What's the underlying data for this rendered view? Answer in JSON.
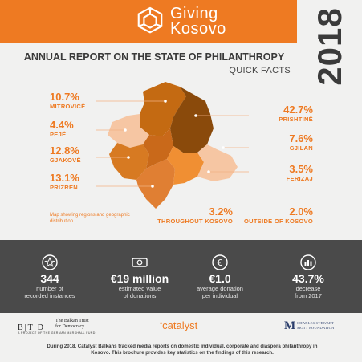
{
  "brand": {
    "logo_line1": "Giving",
    "logo_line2": "Kosovo",
    "year": "2018"
  },
  "report": {
    "title": "ANNUAL REPORT ON THE STATE OF PHILANTHROPY",
    "subtitle": "QUICK FACTS"
  },
  "regions": {
    "mitrovice": {
      "pct": "10.7%",
      "label": "MITROVICË"
    },
    "peje": {
      "pct": "4.4%",
      "label": "PEJË"
    },
    "gjakove": {
      "pct": "12.8%",
      "label": "GJAKOVË"
    },
    "prizren": {
      "pct": "13.1%",
      "label": "PRIZREN"
    },
    "prishtine": {
      "pct": "42.7%",
      "label": "PRISHTINË"
    },
    "gjilan": {
      "pct": "7.6%",
      "label": "GJILAN"
    },
    "ferizaj": {
      "pct": "3.5%",
      "label": "FERIZAJ"
    },
    "throughout": {
      "pct": "3.2%",
      "label": "THROUGHOUT KOSOVO"
    },
    "outside": {
      "pct": "2.0%",
      "label": "OUTSIDE OF KOSOVO"
    }
  },
  "map_note": "Map showing regions and geographic distribution",
  "facts": [
    {
      "icon": "star-icon",
      "value": "344",
      "line1": "number of",
      "line2": "recorded instances"
    },
    {
      "icon": "banknote-icon",
      "value": "€19 million",
      "line1": "estimated value",
      "line2": "of donations"
    },
    {
      "icon": "euro-icon",
      "value": "€1.0",
      "line1": "average donation",
      "line2": "per individual"
    },
    {
      "icon": "bar-chart-icon",
      "value": "43.7%",
      "line1": "decrease",
      "line2": "from 2017"
    }
  ],
  "partners": {
    "btd_mark": "B|T|D",
    "btd_name_line1": "The Balkan Trust",
    "btd_name_line2": "for Democracy",
    "btd_sub": "A PROJECT OF THE GERMAN MARSHALL FUND",
    "catalyst": "catalyst",
    "csm_mark": "M",
    "csm_line1": "CHARLES STEWART",
    "csm_line2": "MOTT FOUNDATION"
  },
  "footer_text": "During 2018, Catalyst Balkans tracked media reports on domestic individual, corporate and diaspora philanthropy in Kosovo. This brochure provides key statistics on the findings of this research.",
  "colors": {
    "accent": "#ee7a22",
    "prishtine": "#8a4a0b",
    "mitrovice": "#c46a12",
    "gjakove": "#d77a22",
    "prizren": "#e07f33",
    "ferizaj": "#f08f33",
    "gjilan": "#f6c6a3",
    "peje": "#f6c6a3",
    "band": "#4a4a4a"
  }
}
